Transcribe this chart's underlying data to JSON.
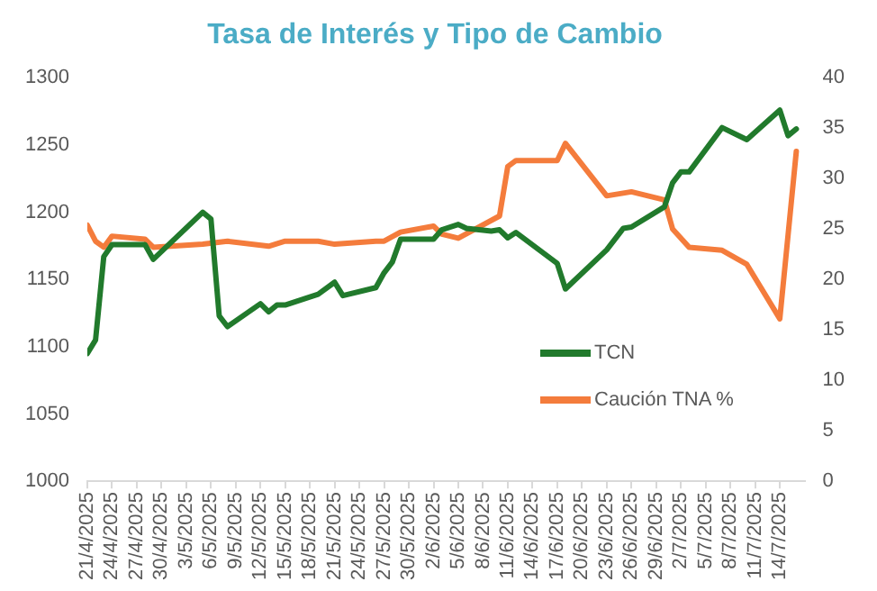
{
  "chart_data": {
    "type": "line",
    "title": "Tasa de Interés y Tipo de Cambio",
    "legend": "right",
    "grid": false,
    "marker": "none",
    "line_style": "solid",
    "xlim": [
      "2025-04-21",
      "2025-07-17"
    ],
    "xticks": [
      {
        "value": "2025-04-21",
        "label": "21/4/2025"
      },
      {
        "value": "2025-04-24",
        "label": "24/4/2025"
      },
      {
        "value": "2025-04-27",
        "label": "27/4/2025"
      },
      {
        "value": "2025-04-30",
        "label": "30/4/2025"
      },
      {
        "value": "2025-05-03",
        "label": "3/5/2025"
      },
      {
        "value": "2025-05-06",
        "label": "6/5/2025"
      },
      {
        "value": "2025-05-09",
        "label": "9/5/2025"
      },
      {
        "value": "2025-05-12",
        "label": "12/5/2025"
      },
      {
        "value": "2025-05-15",
        "label": "15/5/2025"
      },
      {
        "value": "2025-05-18",
        "label": "18/5/2025"
      },
      {
        "value": "2025-05-21",
        "label": "21/5/2025"
      },
      {
        "value": "2025-05-24",
        "label": "24/5/2025"
      },
      {
        "value": "2025-05-27",
        "label": "27/5/2025"
      },
      {
        "value": "2025-05-30",
        "label": "30/5/2025"
      },
      {
        "value": "2025-06-02",
        "label": "2/6/2025"
      },
      {
        "value": "2025-06-05",
        "label": "5/6/2025"
      },
      {
        "value": "2025-06-08",
        "label": "8/6/2025"
      },
      {
        "value": "2025-06-11",
        "label": "11/6/2025"
      },
      {
        "value": "2025-06-14",
        "label": "14/6/2025"
      },
      {
        "value": "2025-06-17",
        "label": "17/6/2025"
      },
      {
        "value": "2025-06-20",
        "label": "20/6/2025"
      },
      {
        "value": "2025-06-23",
        "label": "23/6/2025"
      },
      {
        "value": "2025-06-26",
        "label": "26/6/2025"
      },
      {
        "value": "2025-06-29",
        "label": "29/6/2025"
      },
      {
        "value": "2025-07-02",
        "label": "2/7/2025"
      },
      {
        "value": "2025-07-05",
        "label": "5/7/2025"
      },
      {
        "value": "2025-07-08",
        "label": "8/7/2025"
      },
      {
        "value": "2025-07-11",
        "label": "11/7/2025"
      },
      {
        "value": "2025-07-14",
        "label": "14/7/2025"
      }
    ],
    "ylim": [
      1000,
      1300
    ],
    "yticks": [
      1000,
      1050,
      1100,
      1150,
      1200,
      1250,
      1300
    ],
    "y2lim": [
      0,
      40
    ],
    "y2ticks": [
      0,
      5,
      10,
      15,
      20,
      25,
      30,
      35,
      40
    ],
    "series": [
      {
        "name": "TCN",
        "color": "#217a2c",
        "x": [
          "2025-04-21",
          "2025-04-22",
          "2025-04-23",
          "2025-04-24",
          "2025-04-28",
          "2025-04-29",
          "2025-05-05",
          "2025-05-06",
          "2025-05-07",
          "2025-05-08",
          "2025-05-12",
          "2025-05-13",
          "2025-05-14",
          "2025-05-15",
          "2025-05-19",
          "2025-05-21",
          "2025-05-22",
          "2025-05-26",
          "2025-05-27",
          "2025-05-28",
          "2025-05-29",
          "2025-06-02",
          "2025-06-03",
          "2025-06-05",
          "2025-06-06",
          "2025-06-09",
          "2025-06-10",
          "2025-06-11",
          "2025-06-12",
          "2025-06-17",
          "2025-06-18",
          "2025-06-23",
          "2025-06-25",
          "2025-06-26",
          "2025-06-30",
          "2025-07-01",
          "2025-07-02",
          "2025-07-03",
          "2025-07-07",
          "2025-07-10",
          "2025-07-14",
          "2025-07-15",
          "2025-07-16"
        ],
        "values": [
          1095,
          1105,
          1167,
          1176,
          1176,
          1165,
          1200,
          1195,
          1123,
          1115,
          1132,
          1126,
          1131,
          1131,
          1139,
          1148,
          1138,
          1144,
          1155,
          1163,
          1180,
          1180,
          1187,
          1191,
          1188,
          1186,
          1187,
          1181,
          1185,
          1162,
          1143,
          1172,
          1188,
          1189,
          1204,
          1222,
          1230,
          1230,
          1263,
          1254,
          1276,
          1257,
          1262
        ]
      },
      {
        "name": "Caución TNA %",
        "color": "#f47c3c",
        "axis": "y2",
        "x": [
          "2025-04-21",
          "2025-04-22",
          "2025-04-23",
          "2025-04-24",
          "2025-04-28",
          "2025-04-29",
          "2025-05-05",
          "2025-05-08",
          "2025-05-13",
          "2025-05-15",
          "2025-05-19",
          "2025-05-21",
          "2025-05-26",
          "2025-05-27",
          "2025-05-29",
          "2025-06-02",
          "2025-06-03",
          "2025-06-05",
          "2025-06-10",
          "2025-06-11",
          "2025-06-12",
          "2025-06-17",
          "2025-06-18",
          "2025-06-23",
          "2025-06-26",
          "2025-06-30",
          "2025-07-01",
          "2025-07-03",
          "2025-07-07",
          "2025-07-10",
          "2025-07-14",
          "2025-07-16"
        ],
        "values": [
          25.4,
          23.8,
          23.2,
          24.3,
          24.0,
          23.2,
          23.5,
          23.8,
          23.3,
          23.8,
          23.8,
          23.5,
          23.8,
          23.8,
          24.7,
          25.3,
          24.5,
          24.1,
          26.3,
          31.2,
          31.8,
          31.8,
          33.5,
          28.3,
          28.7,
          27.9,
          25.0,
          23.2,
          22.9,
          21.5,
          16.1,
          32.7
        ]
      }
    ]
  }
}
